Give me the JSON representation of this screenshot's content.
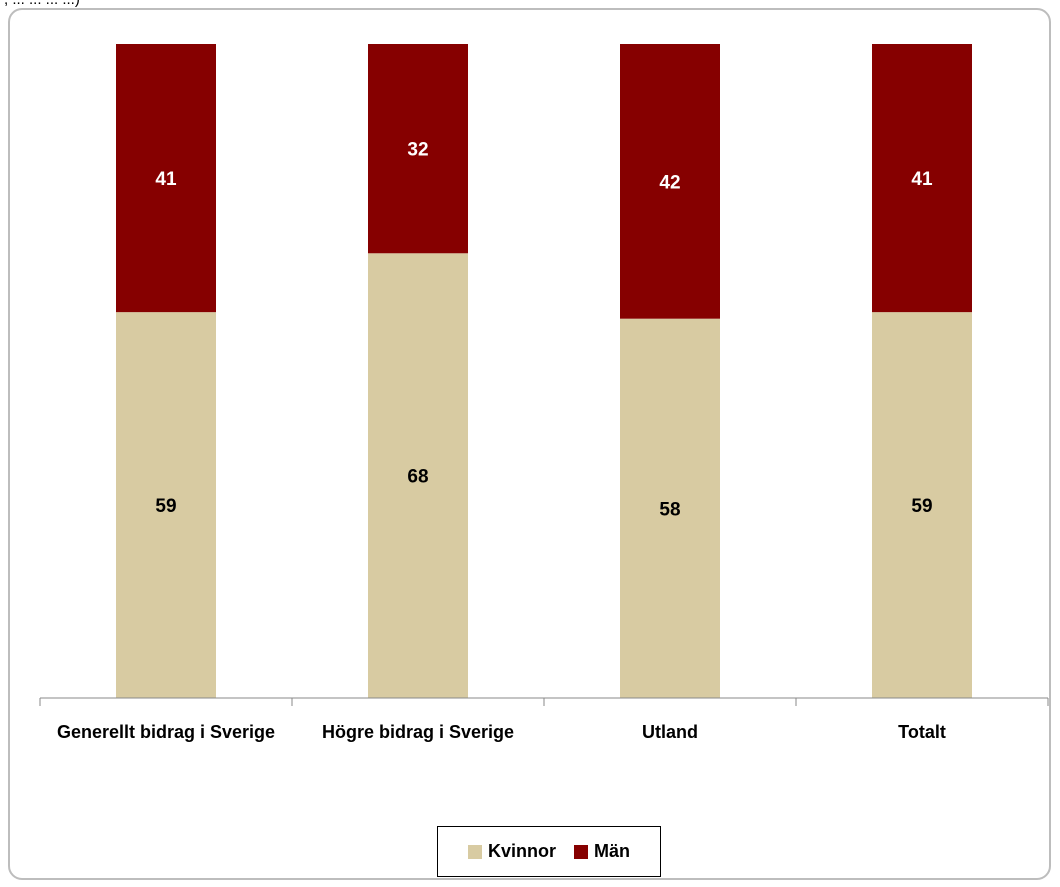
{
  "caption": ", ... ... ... ...)",
  "chart_data": {
    "type": "bar",
    "stacked": true,
    "categories": [
      "Generellt bidrag i Sverige",
      "Högre bidrag i Sverige",
      "Utland",
      "Totalt"
    ],
    "series": [
      {
        "name": "Kvinnor",
        "values": [
          59,
          68,
          58,
          59
        ],
        "color": "#d8cba2"
      },
      {
        "name": "Män",
        "values": [
          41,
          32,
          42,
          41
        ],
        "color": "#860000"
      }
    ],
    "ylim": [
      0,
      100
    ],
    "grid": false,
    "legend_position": "bottom",
    "title": "",
    "xlabel": "",
    "ylabel": ""
  },
  "legend": {
    "items": [
      {
        "label": "Kvinnor",
        "color": "#d8cba2"
      },
      {
        "label": "Män",
        "color": "#860000"
      }
    ]
  }
}
